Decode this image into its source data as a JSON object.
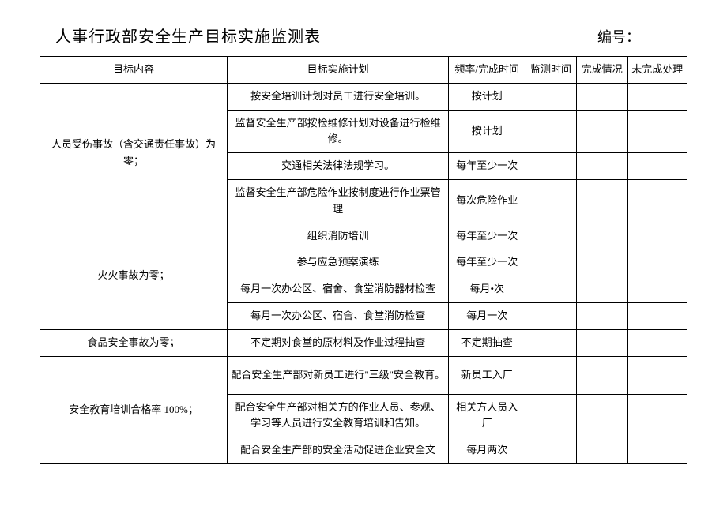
{
  "header": {
    "title": "人事行政部安全生产目标实施监测表",
    "doc_number_label": "编号："
  },
  "columns": {
    "target": "目标内容",
    "plan": "目标实施计划",
    "frequency": "频率/完成时间",
    "monitor_time": "监测时间",
    "status": "完成情况",
    "pending": "未完成处理"
  },
  "groups": [
    {
      "target": "人员受伤事故（含交通责任事故）为零；",
      "rows": [
        {
          "plan": "按安全培训计划对员工进行安全培训。",
          "freq": "按计划",
          "tall": false
        },
        {
          "plan": "监督安全生产部按检维修计划对设备进行检维修。",
          "freq": "按计划",
          "tall": true
        },
        {
          "plan": "交通相关法律法规学习。",
          "freq": "每年至少一次",
          "tall": false
        },
        {
          "plan": "监督安全生产部危险作业按制度进行作业票管理",
          "freq": "每次危险作业",
          "tall": true
        }
      ]
    },
    {
      "target": "火火事故为零；",
      "rows": [
        {
          "plan": "组织消防培训",
          "freq": "每年至少一次",
          "tall": false
        },
        {
          "plan": "参与应急预案演练",
          "freq": "每年至少一次",
          "tall": false
        },
        {
          "plan": "每月一次办公区、宿舍、食堂消防器材检查",
          "freq": "每月•次",
          "tall": false
        },
        {
          "plan": "每月一次办公区、宿舍、食堂消防检查",
          "freq": "每月一次",
          "tall": false
        }
      ]
    },
    {
      "target": "食品安全事故为零；",
      "rows": [
        {
          "plan": "不定期对食堂的原材料及作业过程抽查",
          "freq": "不定期抽查",
          "tall": false
        }
      ]
    },
    {
      "target": "安全教育培训合格率 100%；",
      "rows": [
        {
          "plan": "配合安全生产部对新员工进行\"三级\"安全教育。",
          "freq": "新员工入厂",
          "tall": true
        },
        {
          "plan": "配合安全生产部对相关方的作业人员、参观、学习等人员进行安全教育培训和告知。",
          "freq": "相关方人员入厂",
          "tall": true
        },
        {
          "plan": "配合安全生产部的安全活动促进企业安全文",
          "freq": "每月两次",
          "tall": false
        }
      ]
    }
  ]
}
